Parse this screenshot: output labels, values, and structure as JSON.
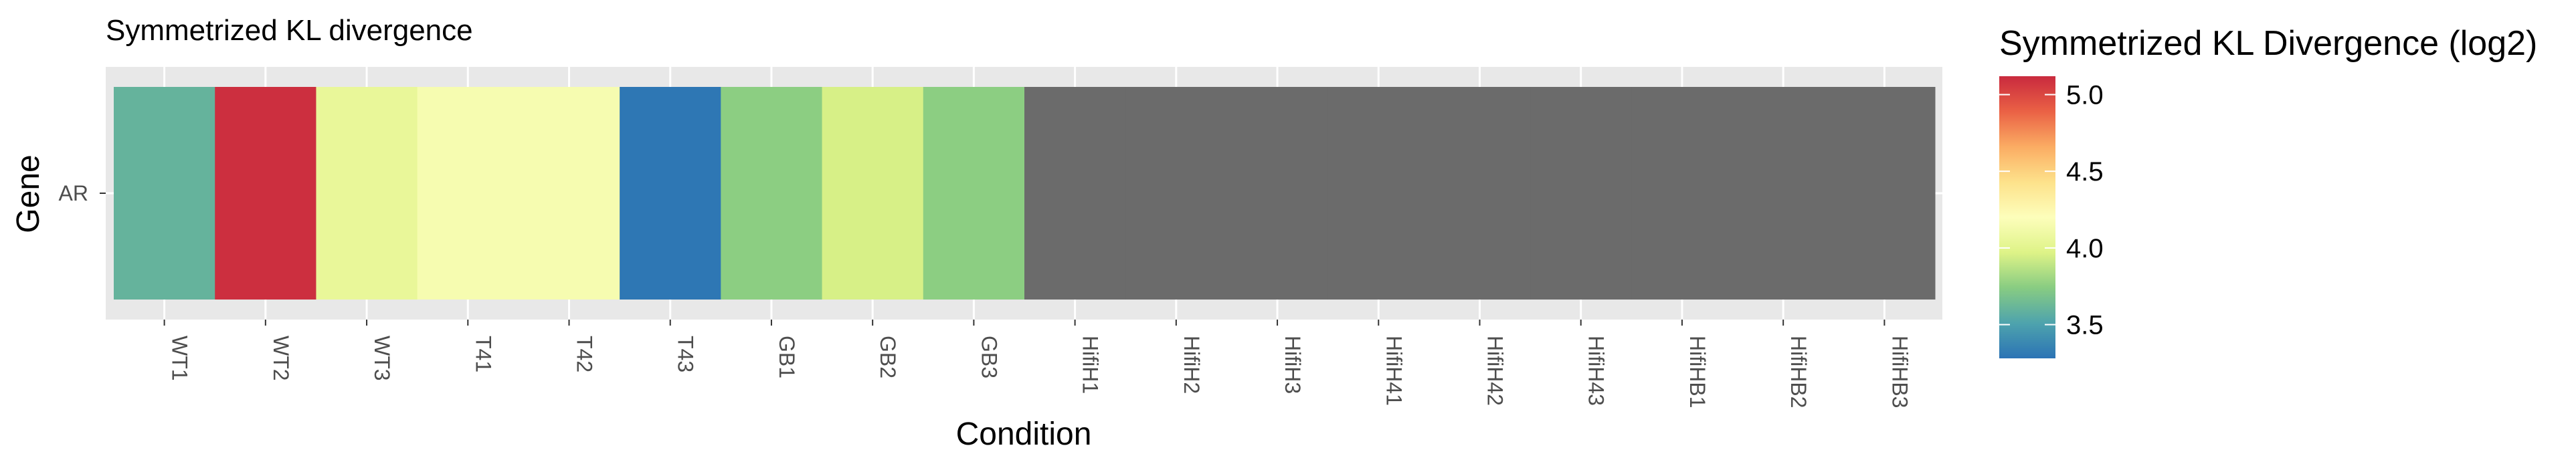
{
  "chart_data": {
    "type": "heatmap",
    "title": "Symmetrized KL divergence",
    "xlabel": "Condition",
    "ylabel": "Gene",
    "rows": [
      "AR"
    ],
    "categories": [
      "WT1",
      "WT2",
      "WT3",
      "T41",
      "T42",
      "T43",
      "GB1",
      "GB2",
      "GB3",
      "HifiH1",
      "HifiH2",
      "HifiH3",
      "HifiH41",
      "HifiH42",
      "HifiH43",
      "HifiHB1",
      "HifiHB2",
      "HifiHB3"
    ],
    "values": [
      [
        3.6,
        5.1,
        4.05,
        4.15,
        4.15,
        3.3,
        3.75,
        3.95,
        3.75,
        null,
        null,
        null,
        null,
        null,
        null,
        null,
        null,
        null
      ]
    ],
    "na_color": "#6b6b6b",
    "legend": {
      "title": "Symmetrized KL Divergence (log2)",
      "range": [
        3.28,
        5.12
      ],
      "ticks": [
        3.5,
        4.0,
        4.5,
        5.0
      ],
      "tick_labels": [
        "3.5",
        "4.0",
        "4.5",
        "5.0"
      ],
      "placement": "right"
    },
    "colors": [
      "#2b73b5",
      "#4ea3ad",
      "#88cc82",
      "#def387",
      "#fdfebb",
      "#fde28b",
      "#fbac63",
      "#ea6145",
      "#c92a3e"
    ],
    "panel_background": "#e8e8e8",
    "grid": true
  }
}
